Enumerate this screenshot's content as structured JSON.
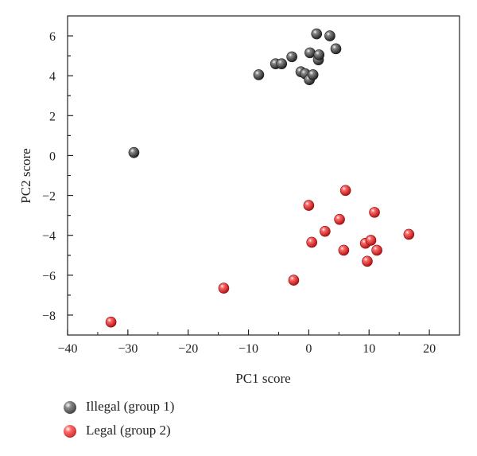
{
  "chart_data": {
    "type": "scatter",
    "xlabel": "PC1 score",
    "ylabel": "PC2 score",
    "xlim": [
      -40,
      25
    ],
    "ylim": [
      -9,
      7
    ],
    "xticks": [
      -40,
      -30,
      -20,
      -10,
      0,
      10,
      20
    ],
    "yticks": [
      -8,
      -6,
      -4,
      -2,
      0,
      2,
      4,
      6
    ],
    "grid": false,
    "legend_position": "below",
    "series": [
      {
        "name": "Illegal (group 1)",
        "color": "#4a4a4a",
        "points": [
          [
            -29.0,
            0.15
          ],
          [
            -8.3,
            4.05
          ],
          [
            -5.5,
            4.6
          ],
          [
            -4.5,
            4.6
          ],
          [
            -2.8,
            4.95
          ],
          [
            -1.3,
            4.2
          ],
          [
            -0.6,
            4.1
          ],
          [
            0.1,
            3.8
          ],
          [
            0.2,
            5.15
          ],
          [
            0.7,
            4.05
          ],
          [
            1.3,
            6.1
          ],
          [
            1.6,
            4.8
          ],
          [
            1.7,
            5.05
          ],
          [
            3.5,
            6.0
          ],
          [
            4.5,
            5.35
          ]
        ]
      },
      {
        "name": "Legal (group 2)",
        "color": "#e8302f",
        "points": [
          [
            -32.8,
            -8.35
          ],
          [
            -14.1,
            -6.65
          ],
          [
            -2.5,
            -6.25
          ],
          [
            0.0,
            -2.5
          ],
          [
            0.5,
            -4.35
          ],
          [
            2.7,
            -3.8
          ],
          [
            5.1,
            -3.2
          ],
          [
            5.8,
            -4.75
          ],
          [
            6.1,
            -1.75
          ],
          [
            9.4,
            -4.4
          ],
          [
            9.7,
            -5.3
          ],
          [
            10.3,
            -4.25
          ],
          [
            10.9,
            -2.85
          ],
          [
            11.3,
            -4.75
          ],
          [
            16.6,
            -3.95
          ]
        ]
      }
    ]
  }
}
